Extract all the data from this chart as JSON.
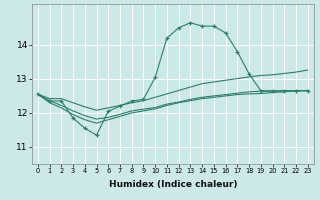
{
  "title": "",
  "xlabel": "Humidex (Indice chaleur)",
  "x_ticks": [
    0,
    1,
    2,
    3,
    4,
    5,
    6,
    7,
    8,
    9,
    10,
    11,
    12,
    13,
    14,
    15,
    16,
    17,
    18,
    19,
    20,
    21,
    22,
    23
  ],
  "y_ticks": [
    11,
    12,
    13,
    14
  ],
  "ylim": [
    10.5,
    15.2
  ],
  "xlim": [
    -0.5,
    23.5
  ],
  "bg_color": "#cce8e8",
  "grid_color": "#ffffff",
  "line_color": "#2e7d6e",
  "lines": [
    {
      "x": [
        0,
        1,
        2,
        3,
        4,
        5,
        6,
        7,
        8,
        9,
        10,
        11,
        12,
        13,
        14,
        15,
        16,
        17,
        18,
        19,
        20,
        21,
        22,
        23
      ],
      "y": [
        12.55,
        12.35,
        12.35,
        11.85,
        11.55,
        11.35,
        12.05,
        12.2,
        12.35,
        12.4,
        13.05,
        14.2,
        14.5,
        14.65,
        14.55,
        14.55,
        14.35,
        13.8,
        13.15,
        12.65,
        12.65,
        12.65,
        12.65,
        12.65
      ],
      "marker": "+"
    },
    {
      "x": [
        0,
        1,
        2,
        3,
        4,
        5,
        6,
        7,
        8,
        9,
        10,
        11,
        12,
        13,
        14,
        15,
        16,
        17,
        18,
        19,
        20,
        21,
        22,
        23
      ],
      "y": [
        12.55,
        12.42,
        12.42,
        12.3,
        12.18,
        12.08,
        12.15,
        12.22,
        12.3,
        12.36,
        12.46,
        12.56,
        12.66,
        12.76,
        12.86,
        12.91,
        12.96,
        13.01,
        13.06,
        13.1,
        13.12,
        13.16,
        13.2,
        13.26
      ],
      "marker": null
    },
    {
      "x": [
        0,
        1,
        2,
        3,
        4,
        5,
        6,
        7,
        8,
        9,
        10,
        11,
        12,
        13,
        14,
        15,
        16,
        17,
        18,
        19,
        20,
        21,
        22,
        23
      ],
      "y": [
        12.55,
        12.3,
        12.15,
        11.95,
        11.8,
        11.7,
        11.8,
        11.9,
        12.0,
        12.06,
        12.12,
        12.22,
        12.3,
        12.36,
        12.42,
        12.46,
        12.5,
        12.54,
        12.56,
        12.57,
        12.6,
        12.62,
        12.65,
        12.66
      ],
      "marker": null
    },
    {
      "x": [
        0,
        1,
        2,
        3,
        4,
        5,
        6,
        7,
        8,
        9,
        10,
        11,
        12,
        13,
        14,
        15,
        16,
        17,
        18,
        19,
        20,
        21,
        22,
        23
      ],
      "y": [
        12.55,
        12.36,
        12.22,
        12.06,
        11.92,
        11.82,
        11.87,
        11.96,
        12.06,
        12.11,
        12.16,
        12.26,
        12.32,
        12.4,
        12.46,
        12.5,
        12.54,
        12.58,
        12.62,
        12.64,
        12.64,
        12.65,
        12.65,
        12.66
      ],
      "marker": null
    }
  ]
}
